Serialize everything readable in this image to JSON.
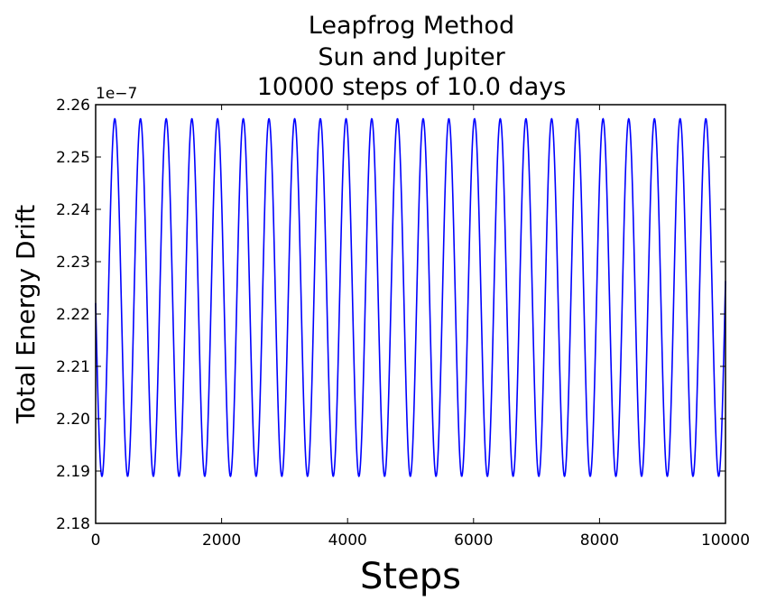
{
  "chart_data": {
    "type": "line",
    "title": [
      "Leapfrog Method",
      "Sun and Jupiter",
      "10000 steps of 10.0 days"
    ],
    "xlabel": "Steps",
    "ylabel": "Total Energy Drift",
    "y_offset_label": "1e−7",
    "xlim": [
      0,
      10000
    ],
    "ylim": [
      2.18,
      2.26
    ],
    "x_ticks": [
      0,
      2000,
      4000,
      6000,
      8000,
      10000
    ],
    "x_tick_labels": [
      "0",
      "2000",
      "4000",
      "6000",
      "8000",
      "10000"
    ],
    "y_ticks": [
      2.18,
      2.19,
      2.2,
      2.21,
      2.22,
      2.23,
      2.24,
      2.25,
      2.26
    ],
    "y_tick_labels": [
      "2.18",
      "2.19",
      "2.20",
      "2.21",
      "2.22",
      "2.23",
      "2.24",
      "2.25",
      "2.26"
    ],
    "grid": false,
    "series": [
      {
        "color": "#0000ff",
        "oscillation": {
          "min": 2.189,
          "max": 2.2573,
          "period_steps": 408,
          "first_min_step": 100
        },
        "x": [
          0,
          10000
        ]
      }
    ]
  }
}
